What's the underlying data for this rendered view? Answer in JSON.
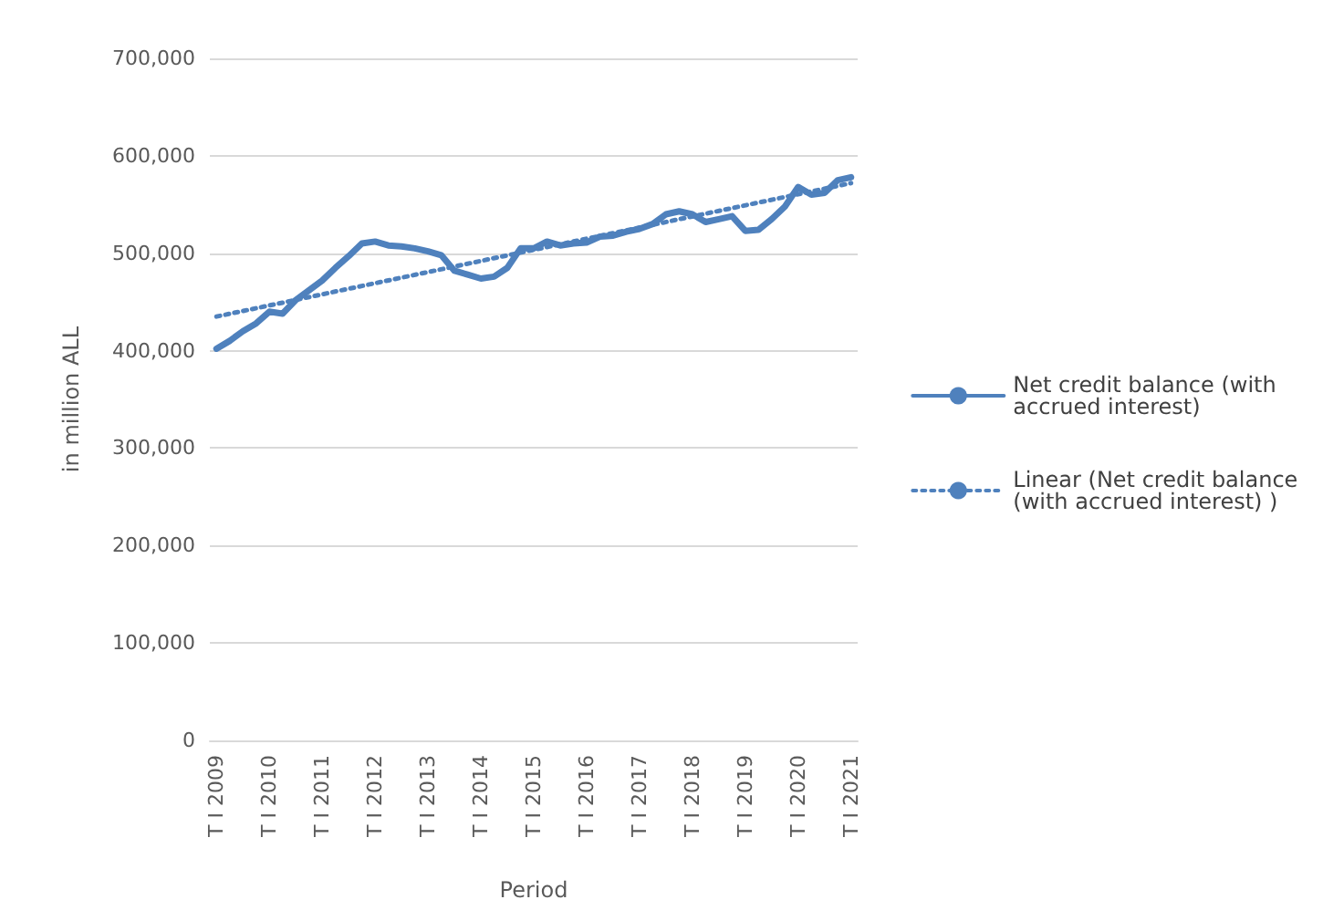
{
  "chart_data": {
    "type": "line",
    "xlabel": "Period",
    "ylabel": "in million ALL",
    "categories": [
      "T I 2009",
      null,
      null,
      null,
      "T I 2010",
      null,
      null,
      null,
      "T I 2011",
      null,
      null,
      null,
      "T I 2012",
      null,
      null,
      null,
      "T I 2013",
      null,
      null,
      null,
      "T I 2014",
      null,
      null,
      null,
      "T I 2015",
      null,
      null,
      null,
      "T I 2016",
      null,
      null,
      null,
      "T I 2017",
      null,
      null,
      null,
      "T I 2018",
      null,
      null,
      null,
      "T I 2019",
      null,
      null,
      null,
      "T I 2020",
      null,
      null,
      null,
      "T I 2021"
    ],
    "series": [
      {
        "name": "Net credit balance (with accrued interest)",
        "color": "#4f81bd",
        "line_style": "solid",
        "values": [
          402000,
          410000,
          420000,
          428000,
          440000,
          438000,
          452000,
          462000,
          472000,
          485000,
          497000,
          510000,
          512000,
          508000,
          507000,
          505000,
          502000,
          498000,
          482000,
          478000,
          474000,
          476000,
          485000,
          505000,
          505000,
          512000,
          508000,
          510000,
          511000,
          517000,
          518000,
          522000,
          525000,
          530000,
          540000,
          543000,
          540000,
          532000,
          535000,
          538000,
          523000,
          524000,
          535000,
          548000,
          568000,
          560000,
          562000,
          575000,
          578000
        ]
      },
      {
        "name": "Linear (Net credit balance (with accrued interest) )",
        "color": "#4f81bd",
        "line_style": "dotted",
        "x": [
          "T I 2009",
          "T I 2021"
        ],
        "values": [
          435000,
          572000
        ]
      }
    ],
    "ylim": [
      0,
      700000
    ],
    "yticks": [
      {
        "value": 0,
        "label": "0"
      },
      {
        "value": 100000,
        "label": "100,000"
      },
      {
        "value": 200000,
        "label": "200,000"
      },
      {
        "value": 300000,
        "label": "300,000"
      },
      {
        "value": 400000,
        "label": "400,000"
      },
      {
        "value": 500000,
        "label": "500,000"
      },
      {
        "value": 600000,
        "label": "600,000"
      },
      {
        "value": 700000,
        "label": "700,000"
      }
    ],
    "grid": "y",
    "legend": "right",
    "marker": "none"
  }
}
